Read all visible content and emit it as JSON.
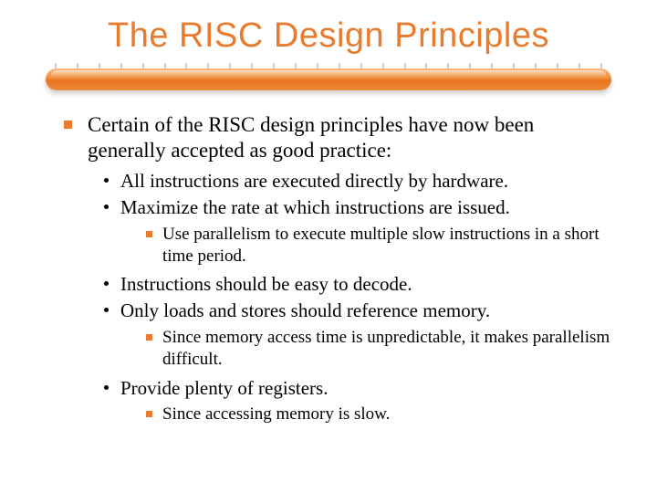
{
  "colors": {
    "accent": "#e87b2e",
    "text": "#000000",
    "background": "#ffffff",
    "bar_gradient": [
      "#f9b87a",
      "#f08d3a",
      "#e87422",
      "#ef8a36"
    ],
    "tick": "#cccccc"
  },
  "typography": {
    "title_family": "Arial",
    "title_size_pt": 38,
    "body_family": "Georgia",
    "lvl1_size_pt": 23,
    "lvl2_size_pt": 21,
    "lvl3_size_pt": 19
  },
  "title": "The RISC Design Principles",
  "bullets": {
    "main": "Certain of the RISC design principles have now been generally accepted as good practice:",
    "sub": [
      "All instructions are executed directly by hardware.",
      "Maximize the rate at which instructions are issued.",
      "Instructions should be easy to decode.",
      "Only loads and stores should reference memory.",
      "Provide plenty of registers."
    ],
    "subsub": {
      "parallelism": "Use parallelism to execute multiple slow instructions in a short time period.",
      "memory": "Since memory access time is unpredictable, it makes parallelism difficult.",
      "registers": "Since accessing memory is slow."
    }
  },
  "tick_count": 26
}
